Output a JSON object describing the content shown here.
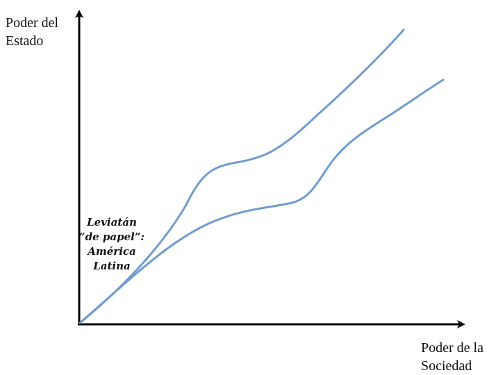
{
  "diagram": {
    "y_axis_label": [
      "Poder del",
      "Estado"
    ],
    "x_axis_label": [
      "Poder de la",
      "Sociedad"
    ],
    "annotation": [
      "Leviatán",
      "“de papel”:",
      "América",
      "Latina"
    ],
    "colors": {
      "axis": "#000000",
      "curve": "#6f9bcf",
      "text": "#111111"
    }
  }
}
